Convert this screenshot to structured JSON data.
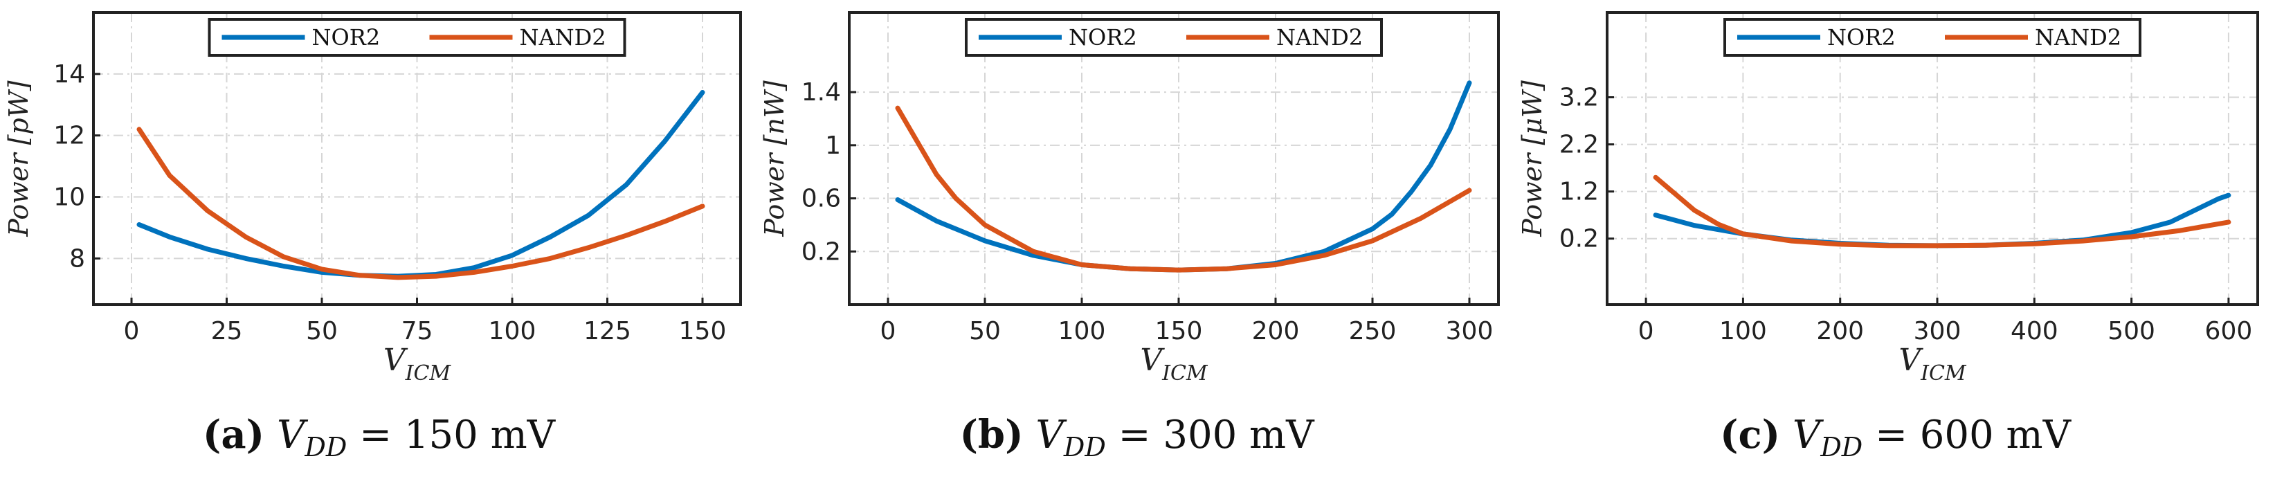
{
  "chart_data": [
    {
      "type": "line",
      "panel_label": "(a)",
      "caption_prefix": "V",
      "caption_sub": "DD",
      "caption_value": "= 150 mV",
      "xlabel_main": "V",
      "xlabel_sub": "ICM",
      "ylabel": "Power [pW]",
      "xlim": [
        -10,
        160
      ],
      "ylim": [
        6.5,
        16
      ],
      "xticks": [
        0,
        25,
        50,
        75,
        100,
        125,
        150
      ],
      "xtick_labels": [
        "0",
        "25",
        "50",
        "75",
        "100",
        "125",
        "150"
      ],
      "yticks": [
        8,
        10,
        12,
        14
      ],
      "ytick_labels": [
        "8",
        "10",
        "12",
        "14"
      ],
      "legend": [
        "NOR2",
        "NAND2"
      ],
      "series": [
        {
          "name": "NOR2",
          "color": "#0072BD",
          "x": [
            2,
            10,
            20,
            30,
            40,
            50,
            60,
            70,
            80,
            90,
            100,
            110,
            120,
            130,
            140,
            150
          ],
          "y": [
            9.1,
            8.7,
            8.3,
            8.0,
            7.75,
            7.55,
            7.45,
            7.42,
            7.48,
            7.7,
            8.1,
            8.7,
            9.4,
            10.4,
            11.8,
            13.4
          ]
        },
        {
          "name": "NAND2",
          "color": "#D95319",
          "x": [
            2,
            10,
            20,
            30,
            40,
            50,
            60,
            70,
            80,
            90,
            100,
            110,
            120,
            130,
            140,
            150
          ],
          "y": [
            12.2,
            10.7,
            9.55,
            8.7,
            8.05,
            7.65,
            7.45,
            7.38,
            7.42,
            7.55,
            7.75,
            8.0,
            8.35,
            8.75,
            9.2,
            9.7
          ]
        }
      ]
    },
    {
      "type": "line",
      "panel_label": "(b)",
      "caption_prefix": "V",
      "caption_sub": "DD",
      "caption_value": "= 300 mV",
      "xlabel_main": "V",
      "xlabel_sub": "ICM",
      "ylabel": "Power [nW]",
      "xlim": [
        -20,
        315
      ],
      "ylim": [
        -0.2,
        2.0
      ],
      "xticks": [
        0,
        50,
        100,
        150,
        200,
        250,
        300
      ],
      "xtick_labels": [
        "0",
        "50",
        "100",
        "150",
        "200",
        "250",
        "300"
      ],
      "yticks": [
        0.2,
        0.6,
        1,
        1.4
      ],
      "ytick_labels": [
        "0.2",
        "0.6",
        "1",
        "1.4"
      ],
      "legend": [
        "NOR2",
        "NAND2"
      ],
      "series": [
        {
          "name": "NOR2",
          "color": "#0072BD",
          "x": [
            5,
            25,
            50,
            75,
            100,
            125,
            150,
            175,
            200,
            225,
            250,
            260,
            270,
            280,
            290,
            300
          ],
          "y": [
            0.59,
            0.43,
            0.28,
            0.17,
            0.1,
            0.07,
            0.06,
            0.07,
            0.11,
            0.2,
            0.37,
            0.48,
            0.65,
            0.85,
            1.12,
            1.47
          ]
        },
        {
          "name": "NAND2",
          "color": "#D95319",
          "x": [
            5,
            15,
            25,
            35,
            50,
            75,
            100,
            125,
            150,
            175,
            200,
            225,
            250,
            275,
            300
          ],
          "y": [
            1.28,
            1.03,
            0.78,
            0.6,
            0.4,
            0.2,
            0.1,
            0.07,
            0.06,
            0.07,
            0.1,
            0.17,
            0.28,
            0.45,
            0.66
          ]
        }
      ]
    },
    {
      "type": "line",
      "panel_label": "(c)",
      "caption_prefix": "V",
      "caption_sub": "DD",
      "caption_value": "= 600 mV",
      "xlabel_main": "V",
      "xlabel_sub": "ICM",
      "ylabel": "Power [μW]",
      "xlim": [
        -40,
        630
      ],
      "ylim": [
        -1.2,
        5.0
      ],
      "xticks": [
        0,
        100,
        200,
        300,
        400,
        500,
        600
      ],
      "xtick_labels": [
        "0",
        "100",
        "200",
        "300",
        "400",
        "500",
        "600"
      ],
      "yticks": [
        0.2,
        1.2,
        2.2,
        3.2
      ],
      "ytick_labels": [
        "0.2",
        "1.2",
        "2.2",
        "3.2"
      ],
      "legend": [
        "NOR2",
        "NAND2"
      ],
      "series": [
        {
          "name": "NOR2",
          "color": "#0072BD",
          "x": [
            10,
            50,
            100,
            150,
            200,
            250,
            300,
            350,
            400,
            450,
            500,
            540,
            570,
            590,
            600
          ],
          "y": [
            0.7,
            0.48,
            0.3,
            0.17,
            0.1,
            0.06,
            0.05,
            0.06,
            0.1,
            0.17,
            0.33,
            0.55,
            0.85,
            1.05,
            1.12
          ]
        },
        {
          "name": "NAND2",
          "color": "#D95319",
          "x": [
            10,
            30,
            50,
            75,
            100,
            150,
            200,
            250,
            300,
            350,
            400,
            450,
            500,
            550,
            600
          ],
          "y": [
            1.5,
            1.15,
            0.8,
            0.5,
            0.3,
            0.15,
            0.08,
            0.05,
            0.05,
            0.06,
            0.09,
            0.15,
            0.24,
            0.37,
            0.55
          ]
        }
      ]
    }
  ]
}
